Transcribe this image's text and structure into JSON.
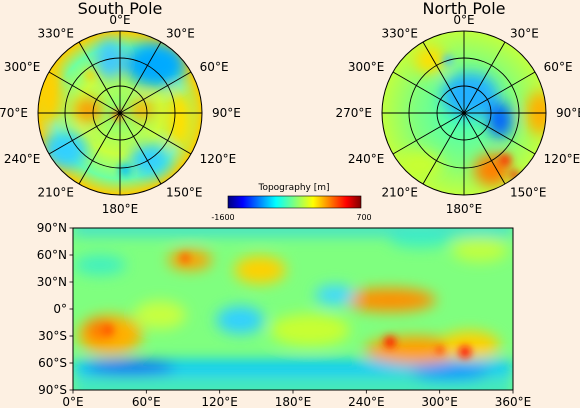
{
  "chart_data": [
    {
      "type": "heatmap",
      "projection": "polar",
      "title": "South Pole",
      "longitude_labels": [
        "0°E",
        "30°E",
        "60°E",
        "90°E",
        "120°E",
        "150°E",
        "180°E",
        "210°E",
        "240°E",
        "270°E",
        "300°E",
        "330°E"
      ],
      "longitude_values": [
        0,
        30,
        60,
        90,
        120,
        150,
        180,
        210,
        240,
        270,
        300,
        330
      ],
      "latitude_circles": 3,
      "grid": true
    },
    {
      "type": "heatmap",
      "projection": "polar",
      "title": "North Pole",
      "longitude_labels": [
        "0°E",
        "30°E",
        "60°E",
        "90°E",
        "120°E",
        "150°E",
        "180°E",
        "210°E",
        "240°E",
        "270°E",
        "300°E",
        "330°E"
      ],
      "longitude_values": [
        0,
        30,
        60,
        90,
        120,
        150,
        180,
        210,
        240,
        270,
        300,
        330
      ],
      "latitude_circles": 3,
      "grid": true
    },
    {
      "type": "heatmap",
      "projection": "equirectangular",
      "title": "",
      "x_tick_labels": [
        "0°E",
        "60°E",
        "120°E",
        "180°E",
        "240°E",
        "300°E",
        "360°E"
      ],
      "x_tick_values": [
        0,
        60,
        120,
        180,
        240,
        300,
        360
      ],
      "y_tick_labels": [
        "90°N",
        "60°N",
        "30°N",
        "0°",
        "30°S",
        "60°S",
        "90°S"
      ],
      "y_tick_values": [
        90,
        60,
        30,
        0,
        -30,
        -60,
        -90
      ],
      "xlim": [
        0,
        360
      ],
      "ylim": [
        -90,
        90
      ],
      "grid": false
    }
  ],
  "colorbar": {
    "label": "Topography [m]",
    "min_label": "-1600",
    "max_label": "700",
    "min": -1600,
    "max": 700,
    "colormap": "jet"
  },
  "colors": {
    "background": "#fdf0e2",
    "jet": [
      "#00007f",
      "#0000ff",
      "#007fff",
      "#00ffff",
      "#7fff7f",
      "#ffff00",
      "#ff7f00",
      "#ff0000",
      "#7f0000"
    ]
  }
}
